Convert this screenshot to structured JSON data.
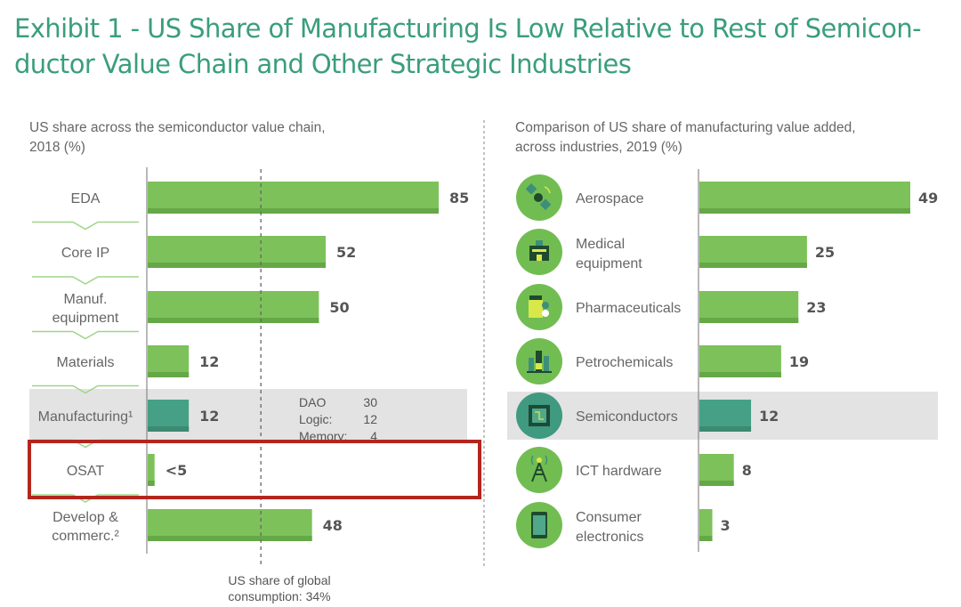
{
  "title": "Exhibit 1 - US Share of Manufacturing Is Low Relative to Rest of Semiconductor Value Chain and Other Strategic Industries",
  "title_lines": [
    "Exhibit 1 - US Share of Manufacturing Is Low Relative to Rest of Semicon-",
    "ductor Value Chain and Other Strategic Industries"
  ],
  "colors": {
    "bar": "#7dc15a",
    "bar_shadow": "#65a847",
    "highlight_bar": "#46a085",
    "highlight_shadow": "#3c8a72",
    "highlight_band": "#e3e3e3",
    "callout_box": "#b3261e",
    "title": "#3a9e7b",
    "chevron": "#9fd58a"
  },
  "chart_data": [
    {
      "type": "bar",
      "orientation": "horizontal",
      "title": "US share across the semiconductor value chain, 2018 (%)",
      "subtitle_lines": [
        "US share across the semiconductor value chain,",
        "2018 (%)"
      ],
      "categories": [
        "EDA",
        "Core IP",
        "Manuf. equipment",
        "Materials",
        "Manufacturing¹",
        "OSAT",
        "Develop & commerc.²"
      ],
      "category_lines": [
        [
          "EDA"
        ],
        [
          "Core IP"
        ],
        [
          "Manuf.",
          "equipment"
        ],
        [
          "Materials"
        ],
        [
          "Manufacturing¹"
        ],
        [
          "OSAT"
        ],
        [
          "Develop &",
          "commerc.²"
        ]
      ],
      "values": [
        85,
        52,
        50,
        12,
        12,
        2,
        48
      ],
      "value_labels": [
        "85",
        "52",
        "50",
        "12",
        "12",
        "<5",
        "48"
      ],
      "highlighted_category": "Manufacturing¹",
      "boxed_category": "OSAT",
      "xlim": [
        0,
        100
      ],
      "reference_line": {
        "value": 34,
        "label_lines": [
          "US share of global",
          "consumption: 34%"
        ]
      },
      "annotation": [
        {
          "label": "DAO",
          "value": "30"
        },
        {
          "label": "Logic:",
          "value": "12"
        },
        {
          "label": "Memory:",
          "value": "4"
        }
      ]
    },
    {
      "type": "bar",
      "orientation": "horizontal",
      "title": "Comparison of US share of manufacturing value added, across industries, 2019 (%)",
      "subtitle_lines": [
        "Comparison of US share of manufacturing value added,",
        "across industries, 2019 (%)"
      ],
      "categories": [
        "Aerospace",
        "Medical equipment",
        "Pharmaceuticals",
        "Petrochemicals",
        "Semiconductors",
        "ICT hardware",
        "Consumer electronics"
      ],
      "category_lines": [
        [
          "Aerospace"
        ],
        [
          "Medical",
          "equipment"
        ],
        [
          "Pharmaceuticals"
        ],
        [
          "Petrochemicals"
        ],
        [
          "Semiconductors"
        ],
        [
          "ICT hardware"
        ],
        [
          "Consumer",
          "electronics"
        ]
      ],
      "icons": [
        "satellite-icon",
        "hospital-icon",
        "medicine-bottle-icon",
        "refinery-icon",
        "microchip-icon",
        "antenna-tower-icon",
        "smartphone-icon"
      ],
      "values": [
        49,
        25,
        23,
        19,
        12,
        8,
        3
      ],
      "value_labels": [
        "49",
        "25",
        "23",
        "19",
        "12",
        "8",
        "3"
      ],
      "highlighted_category": "Semiconductors",
      "xlim": [
        0,
        50
      ]
    }
  ]
}
